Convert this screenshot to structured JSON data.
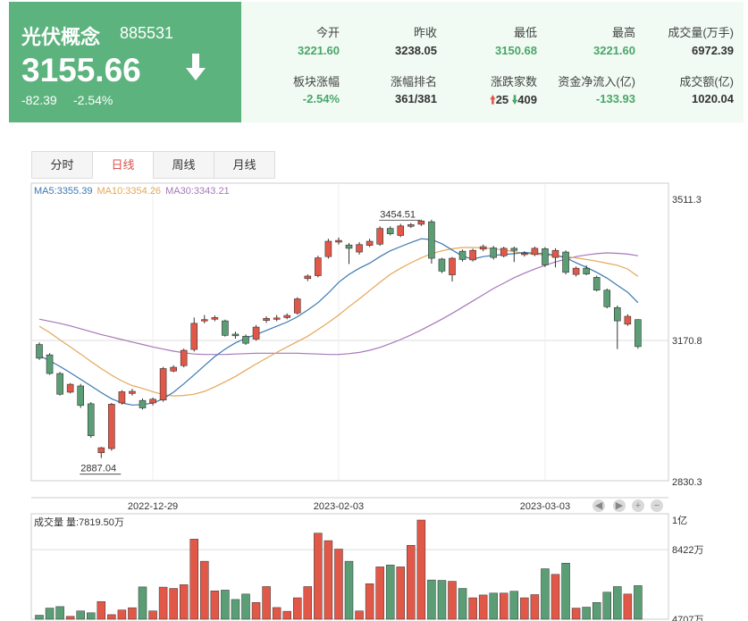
{
  "header": {
    "name": "光伏概念",
    "code": "885531",
    "price": "3155.66",
    "change": "-82.39",
    "change_pct": "-2.54%",
    "bg_color": "#5db37e",
    "arrow_icon": "down-arrow-icon"
  },
  "stats": [
    {
      "label": "今开",
      "value": "3221.60",
      "color": "green"
    },
    {
      "label": "昨收",
      "value": "3238.05",
      "color": "dark"
    },
    {
      "label": "最低",
      "value": "3150.68",
      "color": "green"
    },
    {
      "label": "最高",
      "value": "3221.60",
      "color": "green"
    },
    {
      "label": "成交量(万手)",
      "value": "6972.39",
      "color": "dark"
    },
    {
      "label": "板块涨幅",
      "value": "-2.54%",
      "color": "green"
    },
    {
      "label": "涨幅排名",
      "value": "361/381",
      "color": "dark"
    },
    {
      "label": "涨跌家数",
      "value": "",
      "color": "dark"
    },
    {
      "label": "资金净流入(亿)",
      "value": "-133.93",
      "color": "green"
    },
    {
      "label": "成交额(亿)",
      "value": "1020.04",
      "color": "dark"
    }
  ],
  "advance_decline": {
    "up": "25",
    "down": "409"
  },
  "tabs": [
    {
      "label": "分时",
      "active": false
    },
    {
      "label": "日线",
      "active": true
    },
    {
      "label": "周线",
      "active": false
    },
    {
      "label": "月线",
      "active": false
    }
  ],
  "ma_legend": {
    "ma5": "MA5:3355.39",
    "ma10": "MA10:3354.26",
    "ma30": "MA30:3343.21"
  },
  "volume_legend": "成交量 量:7819.50万",
  "nav_buttons": [
    "◀",
    "▶",
    "+",
    "−"
  ],
  "chart_data": {
    "type": "candlestick",
    "price_axis": {
      "ticks": [
        "3511.3",
        "3170.8",
        "2830.3"
      ],
      "range": [
        2830.3,
        3511.3
      ]
    },
    "date_ticks": [
      {
        "label": "2022-12-29",
        "index": 11
      },
      {
        "label": "2023-02-03",
        "index": 29
      },
      {
        "label": "2023-03-03",
        "index": 49
      }
    ],
    "annotations": [
      {
        "label": "3454.51",
        "index": 35,
        "value": 3454.51
      },
      {
        "label": "2887.04",
        "index": 6,
        "value": 2887.04
      }
    ],
    "candles": [
      {
        "o": 3161,
        "c": 3128,
        "h": 3166,
        "l": 3124
      },
      {
        "o": 3136,
        "c": 3091,
        "h": 3140,
        "l": 3088
      },
      {
        "o": 3091,
        "c": 3041,
        "h": 3095,
        "l": 3038
      },
      {
        "o": 3046,
        "c": 3065,
        "h": 3068,
        "l": 3043
      },
      {
        "o": 3061,
        "c": 3014,
        "h": 3066,
        "l": 3008
      },
      {
        "o": 3018,
        "c": 2941,
        "h": 3022,
        "l": 2936
      },
      {
        "o": 2900,
        "c": 2912,
        "h": 2914,
        "l": 2887
      },
      {
        "o": 2910,
        "c": 3017,
        "h": 3020,
        "l": 2905
      },
      {
        "o": 3020,
        "c": 3047,
        "h": 3051,
        "l": 3016
      },
      {
        "o": 3043,
        "c": 3048,
        "h": 3054,
        "l": 3038
      },
      {
        "o": 3026,
        "c": 3008,
        "h": 3031,
        "l": 3004
      },
      {
        "o": 3020,
        "c": 3029,
        "h": 3033,
        "l": 3014
      },
      {
        "o": 3027,
        "c": 3103,
        "h": 3107,
        "l": 3023
      },
      {
        "o": 3097,
        "c": 3106,
        "h": 3111,
        "l": 3094
      },
      {
        "o": 3110,
        "c": 3147,
        "h": 3151,
        "l": 3106
      },
      {
        "o": 3149,
        "c": 3212,
        "h": 3226,
        "l": 3144
      },
      {
        "o": 3218,
        "c": 3221,
        "h": 3232,
        "l": 3212
      },
      {
        "o": 3222,
        "c": 3226,
        "h": 3231,
        "l": 3217
      },
      {
        "o": 3218,
        "c": 3183,
        "h": 3221,
        "l": 3180
      },
      {
        "o": 3186,
        "c": 3182,
        "h": 3192,
        "l": 3175
      },
      {
        "o": 3181,
        "c": 3164,
        "h": 3185,
        "l": 3160
      },
      {
        "o": 3174,
        "c": 3203,
        "h": 3208,
        "l": 3170
      },
      {
        "o": 3219,
        "c": 3224,
        "h": 3229,
        "l": 3213
      },
      {
        "o": 3222,
        "c": 3225,
        "h": 3232,
        "l": 3217
      },
      {
        "o": 3226,
        "c": 3231,
        "h": 3236,
        "l": 3222
      },
      {
        "o": 3237,
        "c": 3271,
        "h": 3275,
        "l": 3233
      },
      {
        "o": 3320,
        "c": 3326,
        "h": 3330,
        "l": 3314
      },
      {
        "o": 3327,
        "c": 3370,
        "h": 3375,
        "l": 3323
      },
      {
        "o": 3373,
        "c": 3410,
        "h": 3416,
        "l": 3368
      },
      {
        "o": 3408,
        "c": 3412,
        "h": 3419,
        "l": 3402
      },
      {
        "o": 3401,
        "c": 3393,
        "h": 3406,
        "l": 3355
      },
      {
        "o": 3384,
        "c": 3402,
        "h": 3408,
        "l": 3378
      },
      {
        "o": 3400,
        "c": 3410,
        "h": 3416,
        "l": 3396
      },
      {
        "o": 3403,
        "c": 3441,
        "h": 3446,
        "l": 3399
      },
      {
        "o": 3441,
        "c": 3428,
        "h": 3446,
        "l": 3424
      },
      {
        "o": 3424,
        "c": 3447,
        "h": 3452,
        "l": 3420
      },
      {
        "o": 3446,
        "c": 3450,
        "h": 3454,
        "l": 3442
      },
      {
        "o": 3451,
        "c": 3459,
        "h": 3462,
        "l": 3447
      },
      {
        "o": 3457,
        "c": 3369,
        "h": 3462,
        "l": 3356
      },
      {
        "o": 3367,
        "c": 3338,
        "h": 3370,
        "l": 3333
      },
      {
        "o": 3329,
        "c": 3369,
        "h": 3372,
        "l": 3313
      },
      {
        "o": 3386,
        "c": 3366,
        "h": 3390,
        "l": 3361
      },
      {
        "o": 3365,
        "c": 3388,
        "h": 3392,
        "l": 3361
      },
      {
        "o": 3391,
        "c": 3397,
        "h": 3402,
        "l": 3386
      },
      {
        "o": 3394,
        "c": 3371,
        "h": 3399,
        "l": 3366
      },
      {
        "o": 3375,
        "c": 3393,
        "h": 3397,
        "l": 3371
      },
      {
        "o": 3393,
        "c": 3388,
        "h": 3397,
        "l": 3360
      },
      {
        "o": 3378,
        "c": 3381,
        "h": 3386,
        "l": 3373
      },
      {
        "o": 3378,
        "c": 3393,
        "h": 3397,
        "l": 3374
      },
      {
        "o": 3392,
        "c": 3353,
        "h": 3396,
        "l": 3348
      },
      {
        "o": 3371,
        "c": 3388,
        "h": 3393,
        "l": 3347
      },
      {
        "o": 3384,
        "c": 3335,
        "h": 3388,
        "l": 3330
      },
      {
        "o": 3330,
        "c": 3345,
        "h": 3349,
        "l": 3325
      },
      {
        "o": 3345,
        "c": 3331,
        "h": 3352,
        "l": 3328
      },
      {
        "o": 3323,
        "c": 3292,
        "h": 3327,
        "l": 3289
      },
      {
        "o": 3292,
        "c": 3252,
        "h": 3296,
        "l": 3248
      },
      {
        "o": 3250,
        "c": 3218,
        "h": 3255,
        "l": 3150
      },
      {
        "o": 3210,
        "c": 3229,
        "h": 3234,
        "l": 3206
      },
      {
        "o": 3221,
        "c": 3156,
        "h": 3222,
        "l": 3151
      }
    ],
    "ma5": [
      3134,
      3122,
      3108,
      3093,
      3077,
      3061,
      3045,
      3030,
      3020,
      3015,
      3016,
      3020,
      3030,
      3046,
      3066,
      3088,
      3110,
      3132,
      3150,
      3165,
      3176,
      3185,
      3195,
      3205,
      3215,
      3228,
      3244,
      3262,
      3285,
      3311,
      3330,
      3345,
      3357,
      3373,
      3387,
      3397,
      3407,
      3416,
      3414,
      3404,
      3389,
      3374,
      3367,
      3373,
      3376,
      3378,
      3380,
      3383,
      3381,
      3380,
      3376,
      3370,
      3358,
      3347,
      3335,
      3321,
      3304,
      3287,
      3262
    ],
    "ma10": [
      3205,
      3190,
      3172,
      3155,
      3138,
      3120,
      3103,
      3087,
      3073,
      3062,
      3055,
      3047,
      3040,
      3037,
      3038,
      3041,
      3048,
      3059,
      3071,
      3084,
      3099,
      3114,
      3128,
      3142,
      3155,
      3168,
      3181,
      3197,
      3214,
      3232,
      3252,
      3271,
      3291,
      3311,
      3330,
      3345,
      3358,
      3370,
      3380,
      3387,
      3392,
      3395,
      3395,
      3394,
      3392,
      3389,
      3385,
      3381,
      3379,
      3377,
      3375,
      3373,
      3370,
      3366,
      3362,
      3357,
      3352,
      3343,
      3325
    ],
    "ma30": [
      3222,
      3217,
      3212,
      3206,
      3199,
      3192,
      3185,
      3179,
      3173,
      3167,
      3161,
      3155,
      3150,
      3145,
      3141,
      3138,
      3137,
      3137,
      3137,
      3138,
      3139,
      3140,
      3140,
      3140,
      3140,
      3140,
      3139,
      3138,
      3137,
      3137,
      3139,
      3142,
      3147,
      3154,
      3163,
      3173,
      3184,
      3196,
      3209,
      3222,
      3236,
      3251,
      3266,
      3281,
      3296,
      3309,
      3322,
      3333,
      3343,
      3352,
      3360,
      3367,
      3373,
      3377,
      3380,
      3382,
      3381,
      3379,
      3375
    ],
    "volume_axis": {
      "ticks": [
        "1亿",
        "8422万",
        "4707万"
      ],
      "range": [
        4707,
        10000
      ]
    },
    "volume": [
      4920,
      5300,
      5380,
      4860,
      5150,
      5050,
      5650,
      4950,
      5200,
      5320,
      6430,
      5150,
      6420,
      6350,
      6550,
      8980,
      7800,
      6220,
      6260,
      5760,
      6050,
      5600,
      6450,
      5330,
      5130,
      5850,
      6450,
      9300,
      8900,
      8450,
      7800,
      5150,
      6600,
      7500,
      7600,
      7500,
      8650,
      10000,
      6800,
      6780,
      6730,
      6350,
      5850,
      6000,
      6100,
      6100,
      6200,
      5850,
      6020,
      7400,
      7100,
      7700,
      5300,
      5350,
      5600,
      6150,
      6450,
      6050,
      6500
    ]
  }
}
